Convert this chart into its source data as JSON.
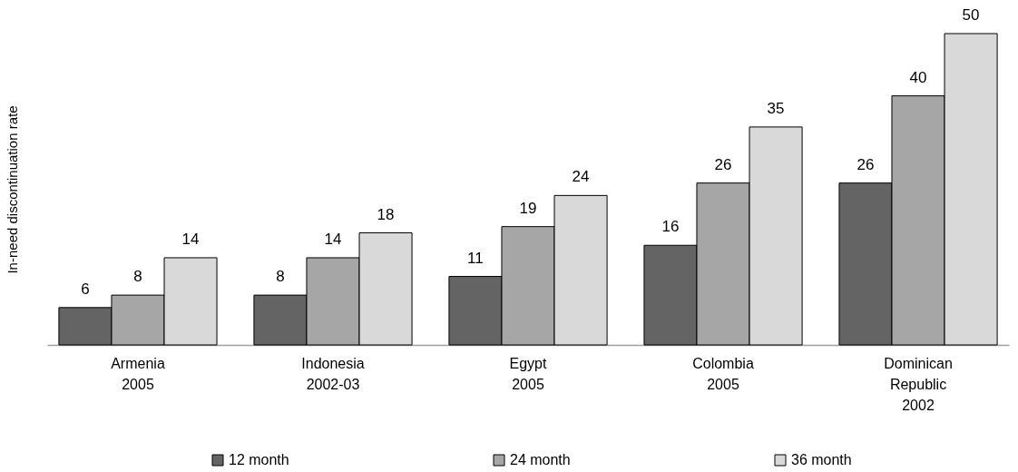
{
  "chart_data": {
    "type": "bar",
    "ylabel": "In-need discontinuation rate",
    "categories": [
      "Armenia\n2005",
      "Indonesia\n2002-03",
      "Egypt\n2005",
      "Colombia\n2005",
      "Dominican\nRepublic\n2002"
    ],
    "series": [
      {
        "name": "12 month",
        "color": "#646464",
        "values": [
          6,
          8,
          11,
          16,
          26
        ]
      },
      {
        "name": "24 month",
        "color": "#a6a6a6",
        "values": [
          8,
          14,
          19,
          26,
          40
        ]
      },
      {
        "name": "36 month",
        "color": "#d9d9d9",
        "values": [
          14,
          18,
          24,
          35,
          50
        ]
      }
    ],
    "ylim": [
      0,
      50
    ],
    "data_labels": true,
    "legend": "bottom",
    "tick_labels": "x"
  }
}
